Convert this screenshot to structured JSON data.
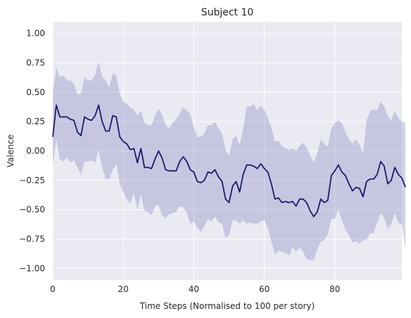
{
  "chart_data": {
    "type": "line",
    "title": "Subject 10",
    "xlabel": "Time Steps (Normalised to 100 per story)",
    "ylabel": "Valence",
    "xlim": [
      0,
      99
    ],
    "ylim": [
      -1.1,
      1.1
    ],
    "grid": true,
    "x_ticks": [
      0,
      20,
      40,
      60,
      80
    ],
    "x_tick_labels": [
      "0",
      "20",
      "40",
      "60",
      "80"
    ],
    "y_ticks": [
      1.0,
      0.75,
      0.5,
      0.25,
      0.0,
      -0.25,
      -0.5,
      -0.75,
      -1.0
    ],
    "y_tick_labels": [
      "1.00",
      "0.75",
      "0.50",
      "0.25",
      "0.00",
      "−0.25",
      "−0.50",
      "−0.75",
      "−1.00"
    ],
    "colors": {
      "background": "#eaeaf2",
      "grid": "#ffffff",
      "line": "#191970",
      "band": "#8c8cc2"
    },
    "series": [
      {
        "values": [
          0.12,
          0.39,
          0.29,
          0.29,
          0.29,
          0.27,
          0.26,
          0.16,
          0.13,
          0.29,
          0.27,
          0.26,
          0.3,
          0.39,
          0.25,
          0.17,
          0.17,
          0.3,
          0.29,
          0.12,
          0.08,
          0.06,
          0.01,
          0.02,
          -0.1,
          0.02,
          -0.14,
          -0.14,
          -0.15,
          -0.07,
          0.0,
          -0.06,
          -0.16,
          -0.17,
          -0.17,
          -0.17,
          -0.09,
          -0.05,
          -0.09,
          -0.16,
          -0.18,
          -0.26,
          -0.27,
          -0.25,
          -0.18,
          -0.19,
          -0.16,
          -0.22,
          -0.26,
          -0.41,
          -0.44,
          -0.3,
          -0.26,
          -0.35,
          -0.2,
          -0.12,
          -0.12,
          -0.13,
          -0.15,
          -0.11,
          -0.15,
          -0.18,
          -0.28,
          -0.41,
          -0.4,
          -0.44,
          -0.43,
          -0.44,
          -0.43,
          -0.47,
          -0.41,
          -0.41,
          -0.44,
          -0.51,
          -0.56,
          -0.52,
          -0.41,
          -0.44,
          -0.42,
          -0.21,
          -0.17,
          -0.12,
          -0.18,
          -0.21,
          -0.28,
          -0.34,
          -0.31,
          -0.32,
          -0.39,
          -0.26,
          -0.24,
          -0.24,
          -0.2,
          -0.09,
          -0.13,
          -0.28,
          -0.25,
          -0.14,
          -0.2,
          -0.23,
          -0.31
        ],
        "upper": [
          0.5,
          0.71,
          0.63,
          0.64,
          0.6,
          0.6,
          0.57,
          0.48,
          0.49,
          0.63,
          0.6,
          0.6,
          0.64,
          0.76,
          0.63,
          0.6,
          0.54,
          0.66,
          0.64,
          0.49,
          0.42,
          0.4,
          0.37,
          0.35,
          0.3,
          0.34,
          0.24,
          0.22,
          0.22,
          0.3,
          0.36,
          0.31,
          0.22,
          0.19,
          0.24,
          0.27,
          0.32,
          0.37,
          0.35,
          0.31,
          0.2,
          0.12,
          0.12,
          0.15,
          0.22,
          0.22,
          0.25,
          0.19,
          0.15,
          0.01,
          -0.04,
          0.1,
          0.13,
          0.05,
          0.19,
          0.38,
          0.38,
          0.4,
          0.35,
          0.39,
          0.35,
          0.28,
          0.2,
          0.08,
          0.09,
          0.04,
          0.02,
          0.01,
          0.02,
          0.0,
          0.04,
          0.07,
          0.03,
          -0.04,
          -0.1,
          -0.02,
          0.1,
          0.06,
          0.04,
          0.19,
          0.24,
          0.26,
          0.24,
          0.16,
          0.1,
          0.06,
          0.1,
          0.05,
          -0.02,
          0.26,
          0.34,
          0.35,
          0.35,
          0.42,
          0.38,
          0.3,
          0.26,
          0.34,
          0.28,
          0.25,
          0.24
        ],
        "lower": [
          -0.12,
          0.1,
          -0.07,
          -0.09,
          -0.06,
          -0.1,
          -0.08,
          -0.14,
          -0.2,
          -0.09,
          -0.09,
          -0.08,
          -0.1,
          0.01,
          -0.14,
          -0.24,
          -0.24,
          -0.16,
          -0.11,
          -0.28,
          -0.35,
          -0.41,
          -0.45,
          -0.36,
          -0.5,
          -0.37,
          -0.51,
          -0.52,
          -0.55,
          -0.47,
          -0.46,
          -0.55,
          -0.57,
          -0.54,
          -0.53,
          -0.52,
          -0.47,
          -0.48,
          -0.53,
          -0.62,
          -0.6,
          -0.65,
          -0.69,
          -0.64,
          -0.58,
          -0.6,
          -0.56,
          -0.61,
          -0.62,
          -0.74,
          -0.72,
          -0.59,
          -0.59,
          -0.62,
          -0.59,
          -0.62,
          -0.61,
          -0.62,
          -0.62,
          -0.6,
          -0.59,
          -0.66,
          -0.77,
          -0.88,
          -0.85,
          -0.86,
          -0.87,
          -0.89,
          -0.82,
          -0.86,
          -0.82,
          -0.86,
          -0.92,
          -0.93,
          -0.93,
          -0.84,
          -0.77,
          -0.76,
          -0.71,
          -0.58,
          -0.58,
          -0.5,
          -0.59,
          -0.67,
          -0.72,
          -0.78,
          -0.77,
          -0.79,
          -0.76,
          -0.76,
          -0.7,
          -0.7,
          -0.61,
          -0.53,
          -0.57,
          -0.66,
          -0.62,
          -0.53,
          -0.61,
          -0.63,
          -0.83
        ]
      }
    ]
  }
}
